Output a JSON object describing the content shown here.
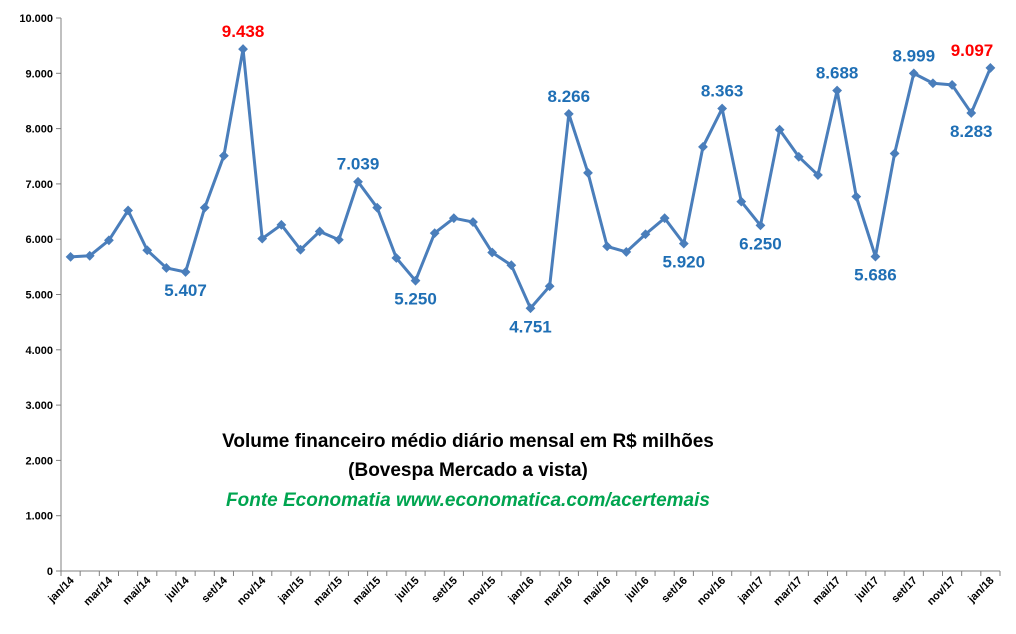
{
  "chart_data": {
    "type": "line",
    "title": "Volume financeiro médio diário mensal em R$ milhões",
    "subtitle": "(Bovespa Mercado a vista)",
    "source": "Fonte Economatia www.economatica.com/acertemais",
    "ylim": [
      0,
      10000
    ],
    "yticks": [
      "0",
      "1.000",
      "2.000",
      "3.000",
      "4.000",
      "5.000",
      "6.000",
      "7.000",
      "8.000",
      "9.000",
      "10.000"
    ],
    "ytick_values": [
      0,
      1000,
      2000,
      3000,
      4000,
      5000,
      6000,
      7000,
      8000,
      9000,
      10000
    ],
    "x": [
      "jan/14",
      "fev/14",
      "mar/14",
      "abr/14",
      "mai/14",
      "jun/14",
      "jul/14",
      "ago/14",
      "set/14",
      "out/14",
      "nov/14",
      "dez/14",
      "jan/15",
      "fev/15",
      "mar/15",
      "abr/15",
      "mai/15",
      "jun/15",
      "jul/15",
      "ago/15",
      "set/15",
      "out/15",
      "nov/15",
      "dez/15",
      "jan/16",
      "fev/16",
      "mar/16",
      "abr/16",
      "mai/16",
      "jun/16",
      "jul/16",
      "ago/16",
      "set/16",
      "out/16",
      "nov/16",
      "dez/16",
      "jan/17",
      "fev/17",
      "mar/17",
      "abr/17",
      "mai/17",
      "jun/17",
      "jul/17",
      "ago/17",
      "set/17",
      "out/17",
      "nov/17",
      "dez/17",
      "jan/18"
    ],
    "xtick_labels": [
      "jan/14",
      "mar/14",
      "mai/14",
      "jul/14",
      "set/14",
      "nov/14",
      "jan/15",
      "mar/15",
      "mai/15",
      "jul/15",
      "set/15",
      "nov/15",
      "jan/16",
      "mar/16",
      "mai/16",
      "jul/16",
      "set/16",
      "nov/16",
      "jan/17",
      "mar/17",
      "mai/17",
      "jul/17",
      "set/17",
      "nov/17",
      "jan/18"
    ],
    "series": [
      {
        "values": [
          5680,
          5700,
          5980,
          6520,
          5800,
          5480,
          5407,
          6570,
          7510,
          9438,
          6010,
          6260,
          5810,
          6140,
          5990,
          7039,
          6570,
          5660,
          5250,
          6110,
          6380,
          6310,
          5760,
          5530,
          4751,
          5150,
          8266,
          7200,
          5870,
          5770,
          6090,
          6380,
          5920,
          7670,
          8363,
          6680,
          6250,
          7980,
          7490,
          7160,
          8688,
          6770,
          5686,
          7550,
          8999,
          8820,
          8790,
          8283,
          9097
        ]
      }
    ],
    "annotations": [
      {
        "index": 6,
        "text": "5.407",
        "color": "#1f6fb5",
        "pos": "below"
      },
      {
        "index": 9,
        "text": "9.438",
        "color": "#ff0000",
        "pos": "above"
      },
      {
        "index": 15,
        "text": "7.039",
        "color": "#1f6fb5",
        "pos": "above"
      },
      {
        "index": 18,
        "text": "5.250",
        "color": "#1f6fb5",
        "pos": "below"
      },
      {
        "index": 24,
        "text": "4.751",
        "color": "#1f6fb5",
        "pos": "below"
      },
      {
        "index": 26,
        "text": "8.266",
        "color": "#1f6fb5",
        "pos": "above"
      },
      {
        "index": 32,
        "text": "5.920",
        "color": "#1f6fb5",
        "pos": "below"
      },
      {
        "index": 34,
        "text": "8.363",
        "color": "#1f6fb5",
        "pos": "above"
      },
      {
        "index": 36,
        "text": "6.250",
        "color": "#1f6fb5",
        "pos": "below"
      },
      {
        "index": 40,
        "text": "8.688",
        "color": "#1f6fb5",
        "pos": "above"
      },
      {
        "index": 42,
        "text": "5.686",
        "color": "#1f6fb5",
        "pos": "below"
      },
      {
        "index": 44,
        "text": "8.999",
        "color": "#1f6fb5",
        "pos": "above"
      },
      {
        "index": 47,
        "text": "8.283",
        "color": "#1f6fb5",
        "pos": "below"
      },
      {
        "index": 48,
        "text": "9.097",
        "color": "#ff0000",
        "pos": "above"
      }
    ],
    "colors": {
      "line": "#4a7ebb",
      "marker": "#4a7ebb",
      "label_blue": "#1f6fb5",
      "label_red": "#ff0000",
      "source": "#00a550",
      "axis": "#808080"
    },
    "grid": false,
    "legend": "none"
  }
}
